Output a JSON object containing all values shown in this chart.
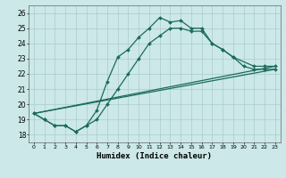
{
  "xlabel": "Humidex (Indice chaleur)",
  "bg_color": "#cce8e8",
  "line_color": "#1a6b5a",
  "grid_color": "#aacccc",
  "xlim": [
    -0.5,
    23.5
  ],
  "ylim": [
    17.5,
    26.5
  ],
  "xticks": [
    0,
    1,
    2,
    3,
    4,
    5,
    6,
    7,
    8,
    9,
    10,
    11,
    12,
    13,
    14,
    15,
    16,
    17,
    18,
    19,
    20,
    21,
    22,
    23
  ],
  "yticks": [
    18,
    19,
    20,
    21,
    22,
    23,
    24,
    25,
    26
  ],
  "line1_x": [
    0,
    1,
    2,
    3,
    4,
    5,
    6,
    7,
    8,
    9,
    10,
    11,
    12,
    13,
    14,
    15,
    16,
    17,
    18,
    19,
    21,
    22,
    23
  ],
  "line1_y": [
    19.4,
    19.0,
    18.6,
    18.6,
    18.2,
    18.6,
    19.6,
    21.5,
    23.1,
    23.6,
    24.4,
    25.0,
    25.7,
    25.4,
    25.5,
    25.0,
    25.0,
    24.0,
    23.6,
    23.1,
    22.5,
    22.5,
    22.5
  ],
  "line2_x": [
    0,
    1,
    2,
    3,
    4,
    5,
    6,
    7,
    8,
    9,
    10,
    11,
    12,
    13,
    14,
    15,
    16,
    17,
    18,
    19,
    20,
    21,
    22,
    23
  ],
  "line2_y": [
    19.4,
    19.0,
    18.6,
    18.6,
    18.2,
    18.6,
    19.0,
    20.0,
    21.0,
    22.0,
    23.0,
    24.0,
    24.5,
    25.0,
    25.0,
    24.8,
    24.8,
    24.0,
    23.6,
    23.1,
    22.5,
    22.3,
    22.3,
    22.3
  ],
  "line3_x": [
    0,
    23
  ],
  "line3_y": [
    19.4,
    22.5
  ],
  "line4_x": [
    0,
    23
  ],
  "line4_y": [
    19.4,
    22.3
  ]
}
